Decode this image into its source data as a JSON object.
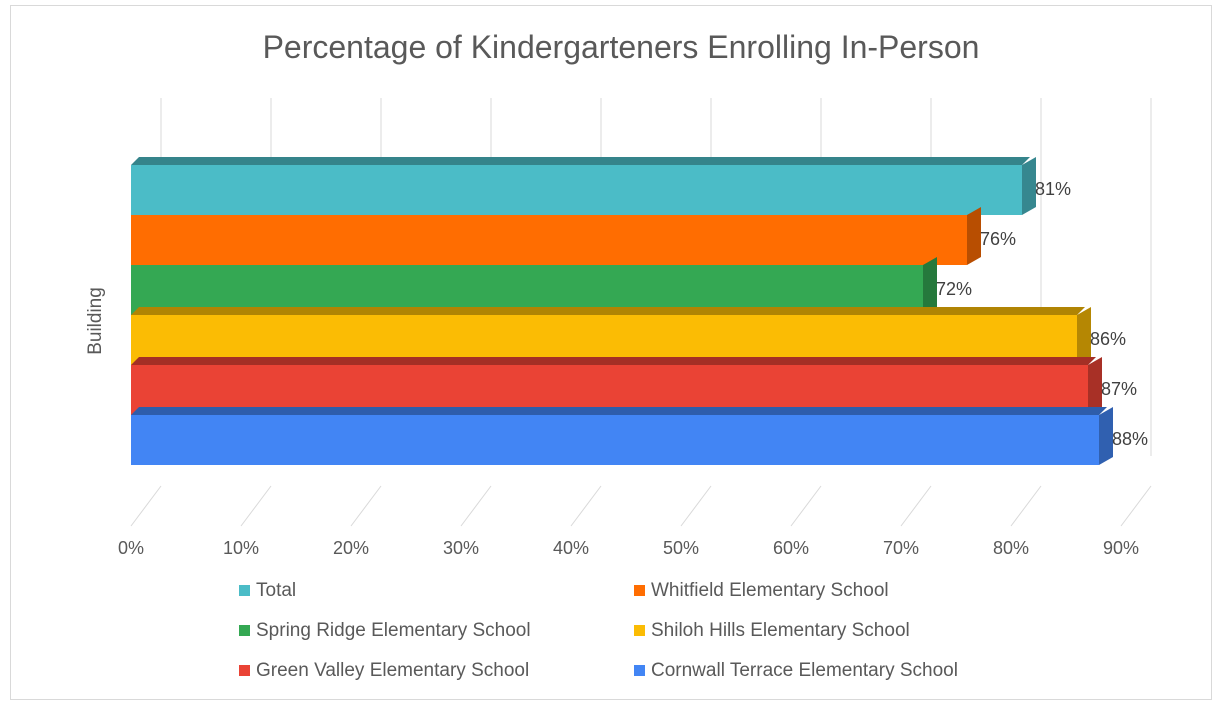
{
  "chart_data": {
    "type": "bar",
    "orientation": "horizontal",
    "style": "3d-clustered",
    "title": "Percentage of Kindergarteners Enrolling In-Person",
    "xlabel": "",
    "ylabel": "Building",
    "xlim": [
      0,
      90
    ],
    "x_ticks": [
      "0%",
      "10%",
      "20%",
      "30%",
      "40%",
      "50%",
      "60%",
      "70%",
      "80%",
      "90%"
    ],
    "grid": true,
    "legend_position": "bottom",
    "series": [
      {
        "name": "Total",
        "value": 81,
        "label": "81%",
        "color": "#4bbcc7"
      },
      {
        "name": "Whitfield Elementary School",
        "value": 76,
        "label": "76%",
        "color": "#ff6d01"
      },
      {
        "name": "Spring Ridge Elementary School",
        "value": 72,
        "label": "72%",
        "color": "#34a853"
      },
      {
        "name": "Shiloh Hills Elementary School",
        "value": 86,
        "label": "86%",
        "color": "#fbbc04"
      },
      {
        "name": "Green Valley Elementary School",
        "value": 87,
        "label": "87%",
        "color": "#ea4335"
      },
      {
        "name": "Cornwall Terrace Elementary School",
        "value": 88,
        "label": "88%",
        "color": "#4285f4"
      }
    ]
  }
}
